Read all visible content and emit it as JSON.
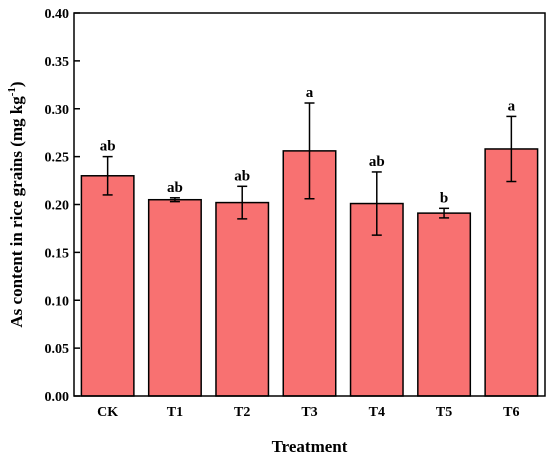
{
  "chart_data": {
    "type": "bar",
    "title": "",
    "xlabel": "Treatment",
    "ylabel_main": "As content in rice grains (mg kg",
    "ylabel_sup": "-1",
    "ylabel_close": ")",
    "ylim": [
      0,
      0.4
    ],
    "yticks": [
      "0.00",
      "0.05",
      "0.10",
      "0.15",
      "0.20",
      "0.25",
      "0.30",
      "0.35",
      "0.40"
    ],
    "categories": [
      "CK",
      "T1",
      "T2",
      "T3",
      "T4",
      "T5",
      "T6"
    ],
    "values": [
      0.23,
      0.205,
      0.202,
      0.256,
      0.201,
      0.191,
      0.258
    ],
    "errors": [
      0.02,
      0.002,
      0.017,
      0.05,
      0.033,
      0.005,
      0.034
    ],
    "significance": [
      "ab",
      "ab",
      "ab",
      "a",
      "ab",
      "b",
      "a"
    ],
    "bar_color": "#f87171",
    "bar_edge_color": "#000000"
  }
}
